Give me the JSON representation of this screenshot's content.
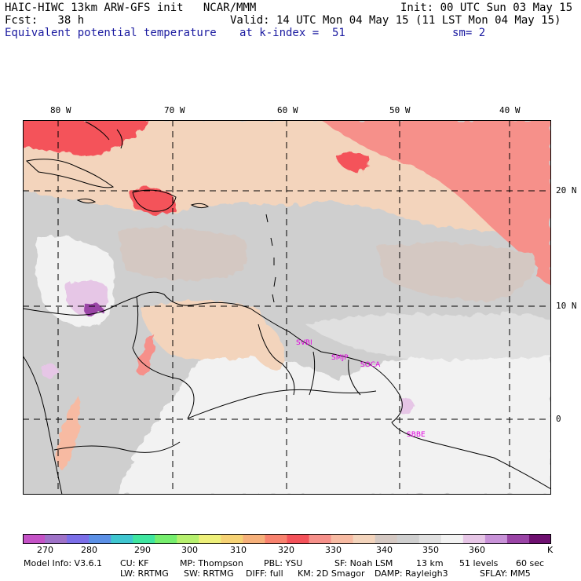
{
  "header": {
    "model_line": "HAIC-HIWC 13km ARW-GFS init   NCAR/MMM",
    "init_line": "Init: 00 UTC Sun 03 May 15",
    "fcst_line": "Fcst:   38 h",
    "valid_line": "Valid: 14 UTC Mon 04 May 15 (11 LST Mon 04 May 15)",
    "field_name": "Equivalent potential temperature",
    "level": "at k-index =  51",
    "smoothing": "sm= 2"
  },
  "map": {
    "lon_ticks": [
      "80 W",
      "70 W",
      "60 W",
      "50 W",
      "40 W"
    ],
    "lat_ticks": [
      "20 N",
      "10 N",
      "0"
    ],
    "station_labels": [
      "SVBI",
      "SMJP",
      "SOCA",
      "SBBE"
    ]
  },
  "colorbar": {
    "labels": [
      "270",
      "280",
      "290",
      "300",
      "310",
      "320",
      "330",
      "340",
      "350",
      "360"
    ],
    "unit": "K",
    "colors": [
      "#c452c6",
      "#9f72c8",
      "#7b6ee8",
      "#5b90e6",
      "#3fc6d0",
      "#3fe6a0",
      "#76ee6e",
      "#b6f06e",
      "#eef07a",
      "#f6d274",
      "#f6b07a",
      "#f8826e",
      "#f4525a",
      "#f6908a",
      "#f7baa2",
      "#f3d4bc",
      "#d4c8c2",
      "#cfcfcf",
      "#e0e0e0",
      "#f2f2f2",
      "#e6c6e6",
      "#c892d8",
      "#9a44a6",
      "#6e1070"
    ]
  },
  "footer": {
    "line1": [
      "Model Info: V3.6.1",
      "CU: KF",
      "MP: Thompson",
      "PBL: YSU",
      "SF: Noah LSM",
      "13 km",
      "51 levels",
      "60 sec"
    ],
    "line2": [
      "LW: RRTMG",
      "SW: RRTMG",
      "DIFF: full",
      "KM: 2D Smagor",
      "DAMP: Rayleigh3",
      "SFLAY: MM5"
    ]
  }
}
